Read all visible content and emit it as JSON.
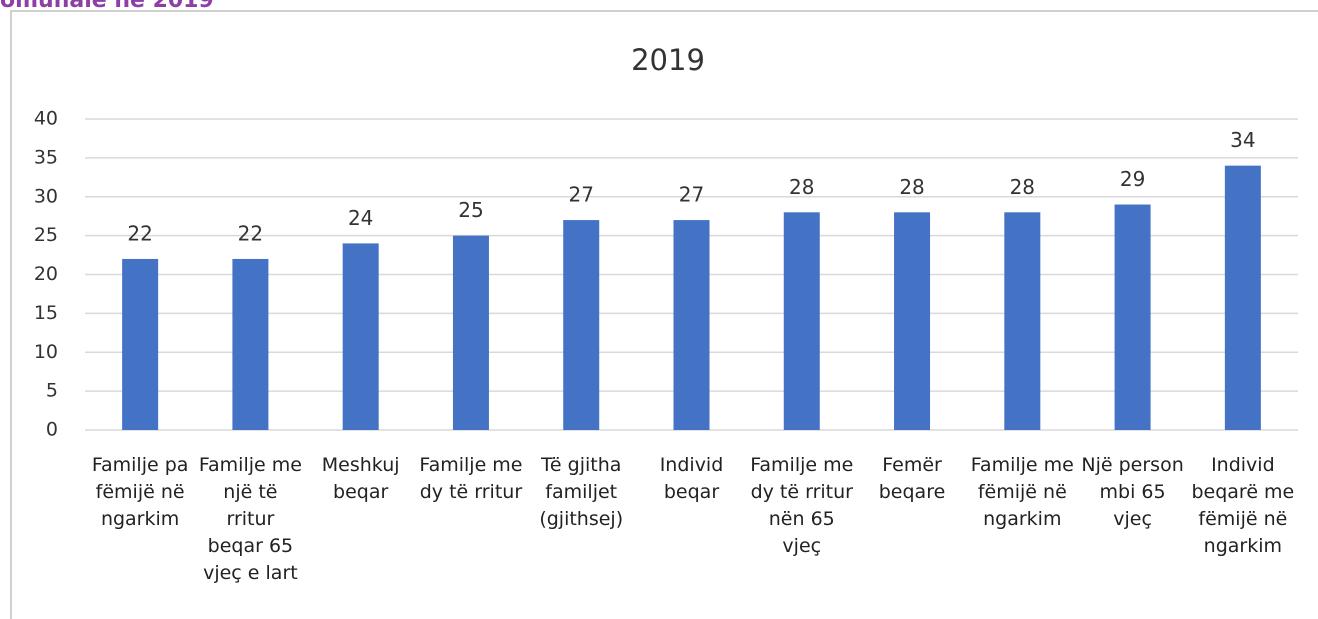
{
  "heading": "omunale në 2019",
  "chart_data": {
    "type": "bar",
    "title": "2019",
    "categories": [
      "Familje pa fëmijë në ngarkim",
      "Familje me një të rritur beqar 65 vjeç e lart",
      "Meshkuj beqar",
      "Familje me dy të rritur",
      "Të gjitha familjet (gjithsej)",
      "Individ beqar",
      "Familje me dy të rritur nën 65 vjeç",
      "Femër beqare",
      "Familje me fëmijë në ngarkim",
      "Një person mbi 65 vjeç",
      "Individ beqarë me fëmijë në ngarkim"
    ],
    "values": [
      22,
      22,
      24,
      25,
      27,
      27,
      28,
      28,
      28,
      29,
      34
    ],
    "color": "#4472c4",
    "ylim": [
      0,
      40
    ],
    "yticks": [
      0,
      5,
      10,
      15,
      20,
      25,
      30,
      35,
      40
    ],
    "grid": true
  }
}
